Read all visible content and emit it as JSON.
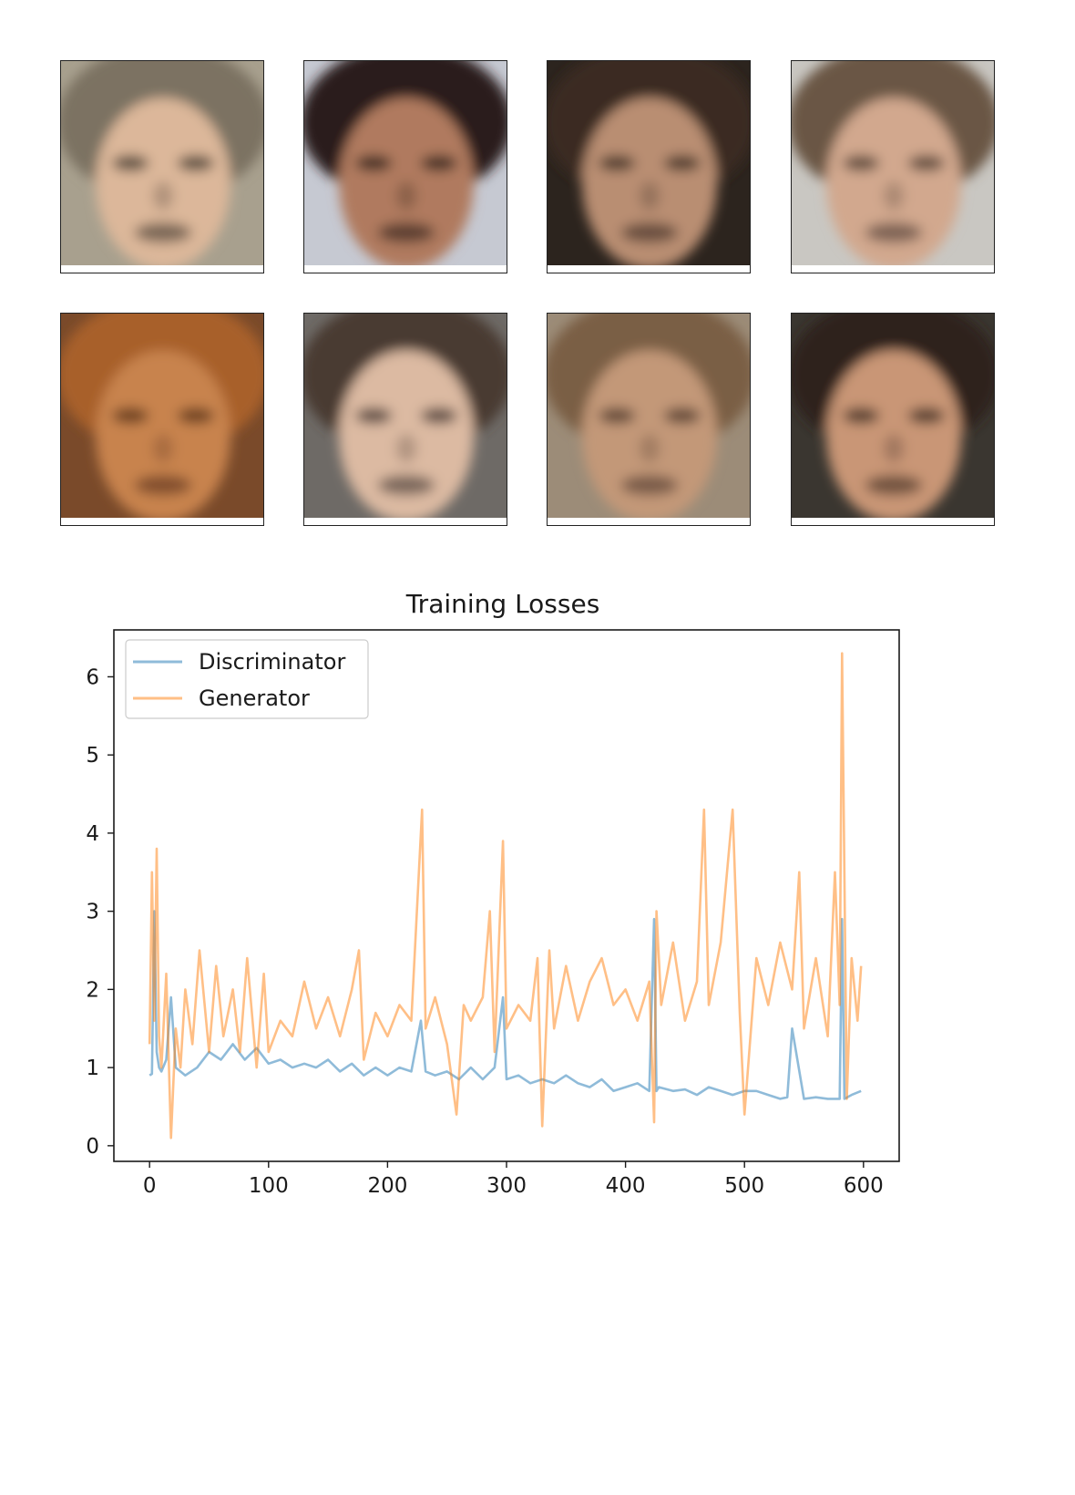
{
  "faces": [
    {
      "hair": "#7c7262",
      "bg": "#a8a08e",
      "skin": "#dcb79a",
      "dark": "#2e2620"
    },
    {
      "hair": "#2a1f1a",
      "bg": "#c6c9d2",
      "skin": "#b07a5e",
      "dark": "#1a1210"
    },
    {
      "hair": "#3a2c24",
      "bg": "#2c241e",
      "skin": "#b98e72",
      "dark": "#2a1e18"
    },
    {
      "hair": "#6a5644",
      "bg": "#c9c7c2",
      "skin": "#d2a88e",
      "dark": "#3a2c24"
    },
    {
      "hair": "#a8602a",
      "bg": "#7a4a2a",
      "skin": "#c8834e",
      "dark": "#4a2612"
    },
    {
      "hair": "#4a3a30",
      "bg": "#6e6a66",
      "skin": "#dcbaa2",
      "dark": "#2e2420"
    },
    {
      "hair": "#7a5e44",
      "bg": "#9c8c78",
      "skin": "#c39878",
      "dark": "#3e2c20"
    },
    {
      "hair": "#2e241e",
      "bg": "#3a3630",
      "skin": "#c99676",
      "dark": "#2a1c16"
    }
  ],
  "chart_data": {
    "type": "line",
    "title": "Training Losses",
    "xlabel": "",
    "ylabel": "",
    "xlim": [
      -30,
      630
    ],
    "ylim": [
      -0.2,
      6.6
    ],
    "xticks": [
      0,
      100,
      200,
      300,
      400,
      500,
      600
    ],
    "yticks": [
      0,
      1,
      2,
      3,
      4,
      5,
      6
    ],
    "legend_position": "top-left",
    "grid": false,
    "series": [
      {
        "name": "Discriminator",
        "color": "#1f77b4",
        "opacity": 0.5,
        "x": [
          0,
          2,
          4,
          6,
          8,
          10,
          14,
          18,
          22,
          26,
          30,
          40,
          50,
          60,
          70,
          80,
          90,
          100,
          110,
          120,
          130,
          140,
          150,
          160,
          170,
          180,
          190,
          200,
          210,
          220,
          228,
          232,
          240,
          250,
          260,
          270,
          280,
          290,
          297,
          300,
          310,
          320,
          330,
          340,
          350,
          360,
          370,
          380,
          390,
          400,
          410,
          420,
          424,
          426,
          428,
          440,
          450,
          460,
          470,
          480,
          490,
          500,
          510,
          520,
          530,
          536,
          540,
          550,
          560,
          570,
          580,
          582,
          584,
          590,
          598
        ],
        "y": [
          0.9,
          0.92,
          3.0,
          1.2,
          1.0,
          0.95,
          1.1,
          1.9,
          1.0,
          0.95,
          0.9,
          1.0,
          1.2,
          1.1,
          1.3,
          1.1,
          1.25,
          1.05,
          1.1,
          1.0,
          1.05,
          1.0,
          1.1,
          0.95,
          1.05,
          0.9,
          1.0,
          0.9,
          1.0,
          0.95,
          1.6,
          0.95,
          0.9,
          0.95,
          0.85,
          1.0,
          0.85,
          1.0,
          1.9,
          0.85,
          0.9,
          0.8,
          0.85,
          0.8,
          0.9,
          0.8,
          0.75,
          0.85,
          0.7,
          0.75,
          0.8,
          0.7,
          2.9,
          0.7,
          0.75,
          0.7,
          0.72,
          0.65,
          0.75,
          0.7,
          0.65,
          0.7,
          0.7,
          0.65,
          0.6,
          0.62,
          1.5,
          0.6,
          0.62,
          0.6,
          0.6,
          2.9,
          0.6,
          0.65,
          0.7
        ]
      },
      {
        "name": "Generator",
        "color": "#ff7f0e",
        "opacity": 0.5,
        "x": [
          0,
          2,
          4,
          6,
          8,
          10,
          14,
          18,
          22,
          26,
          30,
          36,
          42,
          50,
          56,
          62,
          70,
          76,
          82,
          90,
          96,
          100,
          110,
          120,
          130,
          140,
          150,
          160,
          170,
          176,
          180,
          190,
          200,
          210,
          220,
          229,
          232,
          240,
          250,
          258,
          264,
          270,
          280,
          286,
          290,
          297,
          300,
          310,
          320,
          326,
          330,
          336,
          340,
          350,
          360,
          370,
          380,
          390,
          400,
          410,
          420,
          424,
          426,
          430,
          440,
          450,
          460,
          466,
          470,
          480,
          490,
          496,
          500,
          510,
          520,
          530,
          540,
          546,
          550,
          560,
          570,
          576,
          580,
          582,
          586,
          590,
          595,
          598
        ],
        "y": [
          1.3,
          3.5,
          1.6,
          3.8,
          1.4,
          1.0,
          2.2,
          0.1,
          1.5,
          1.0,
          2.0,
          1.3,
          2.5,
          1.2,
          2.3,
          1.4,
          2.0,
          1.2,
          2.4,
          1.0,
          2.2,
          1.2,
          1.6,
          1.4,
          2.1,
          1.5,
          1.9,
          1.4,
          2.0,
          2.5,
          1.1,
          1.7,
          1.4,
          1.8,
          1.6,
          4.3,
          1.5,
          1.9,
          1.3,
          0.4,
          1.8,
          1.6,
          1.9,
          3.0,
          1.2,
          3.9,
          1.5,
          1.8,
          1.6,
          2.4,
          0.25,
          2.5,
          1.5,
          2.3,
          1.6,
          2.1,
          2.4,
          1.8,
          2.0,
          1.6,
          2.1,
          0.3,
          3.0,
          1.8,
          2.6,
          1.6,
          2.1,
          4.3,
          1.8,
          2.6,
          4.3,
          1.7,
          0.4,
          2.4,
          1.8,
          2.6,
          2.0,
          3.5,
          1.5,
          2.4,
          1.4,
          3.5,
          1.8,
          6.3,
          0.6,
          2.4,
          1.6,
          2.3
        ]
      }
    ]
  }
}
